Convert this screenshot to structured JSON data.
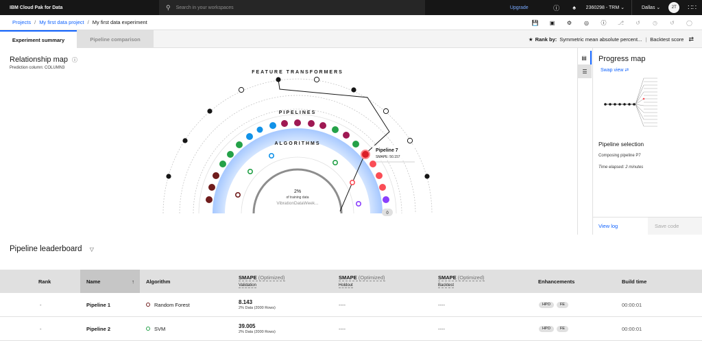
{
  "topbar": {
    "brand": "IBM Cloud Pak for Data",
    "search_placeholder": "Search in your workspaces",
    "upgrade": "Upgrade",
    "account": "2360298 - TRM",
    "region": "Dallas",
    "avatar": "2T"
  },
  "breadcrumb": {
    "projects": "Projects",
    "project": "My first data project",
    "current": "My first data experiment"
  },
  "tabs": {
    "summary": "Experiment summary",
    "comparison": "Pipeline comparison"
  },
  "rank": {
    "label": "Rank by:",
    "metric": "Symmetric mean absolute percent...",
    "score": "Backtest score"
  },
  "relationship_map": {
    "title": "Relationship map",
    "prediction_label": "Prediction column:",
    "prediction_value": "COLUMN3",
    "ring_feature": "FEATURE TRANSFORMERS",
    "ring_pipelines": "PIPELINES",
    "ring_algorithms": "ALGORITHMS",
    "center_pct": "2%",
    "center_label": "of training data",
    "center_dataset": "VibrationDataWeek...",
    "counter": "0",
    "tooltip_title": "Pipeline 7",
    "tooltip_value": "SMAPE: 50.157"
  },
  "progress": {
    "title": "Progress map",
    "swap": "Swap view",
    "selection_title": "Pipeline selection",
    "composing": "Composing pipeline P7",
    "elapsed": "Time elapsed: 2 minutes",
    "view_log": "View log",
    "save_code": "Save code"
  },
  "leaderboard": {
    "title": "Pipeline leaderboard",
    "headers": {
      "rank": "Rank",
      "name": "Name",
      "algorithm": "Algorithm",
      "metric": "SMAPE",
      "optimized": "(Optimized)",
      "validation": "Validation",
      "holdout": "Holdout",
      "backtest": "Backtest",
      "enhancements": "Enhancements",
      "build_time": "Build time"
    },
    "rows": [
      {
        "rank": "-",
        "name": "Pipeline 1",
        "algorithm": "Random Forest",
        "alg_color": "#6f1c1c",
        "validation": "8.143",
        "data": "2% Data (2000 Rows)",
        "holdout": "----",
        "backtest": "----",
        "tag1": "HPO",
        "tag2": "FE",
        "time": "00:00:01"
      },
      {
        "rank": "-",
        "name": "Pipeline 2",
        "algorithm": "SVM",
        "alg_color": "#24a148",
        "validation": "39.005",
        "data": "2% Data (2000 Rows)",
        "holdout": "----",
        "backtest": "----",
        "tag1": "HPO",
        "tag2": "FE",
        "time": "00:00:01"
      }
    ]
  }
}
